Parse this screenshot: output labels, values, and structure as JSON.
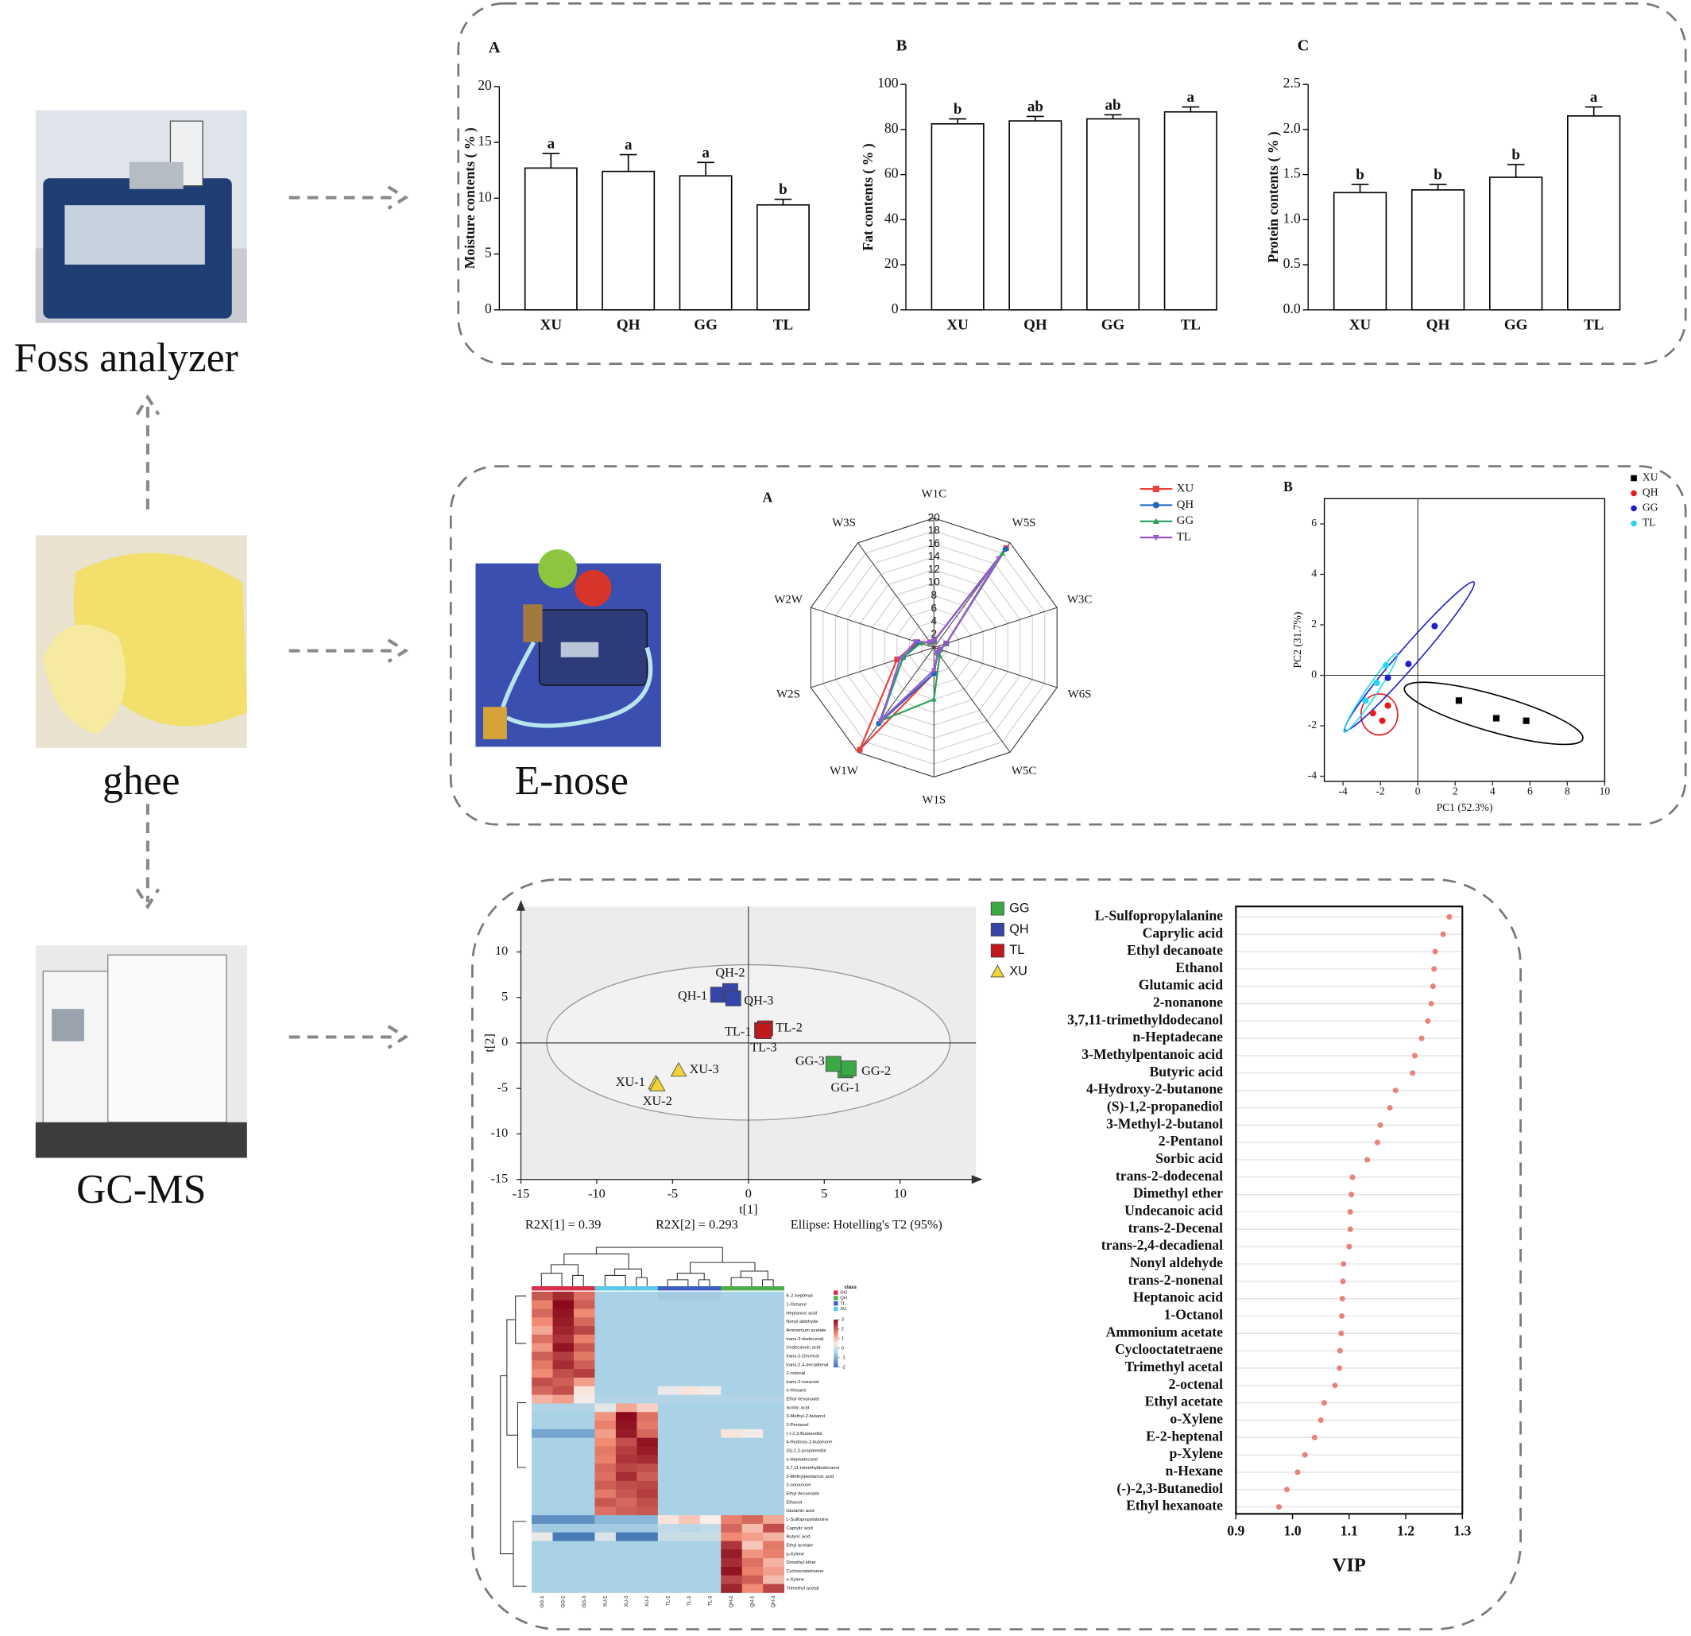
{
  "nodes": [
    {
      "label": "Foss analyzer"
    },
    {
      "label": "ghee"
    },
    {
      "label": "E-nose"
    },
    {
      "label": "GC-MS"
    }
  ],
  "chart_data": [
    {
      "type": "bar",
      "panel": "A",
      "ylabel": "Moisture contents ( % )",
      "categories": [
        "XU",
        "QH",
        "GG",
        "TL"
      ],
      "values": [
        12.7,
        12.4,
        12.0,
        9.4
      ],
      "errors": [
        1.3,
        1.5,
        1.2,
        0.5
      ],
      "annotations": [
        "a",
        "a",
        "a",
        "b"
      ],
      "color": "#ffffff",
      "ylim": [
        0,
        20
      ],
      "yticks": [
        0,
        5,
        10,
        15,
        20
      ]
    },
    {
      "type": "bar",
      "panel": "B",
      "ylabel": "Fat contents ( % )",
      "categories": [
        "XU",
        "QH",
        "GG",
        "TL"
      ],
      "values": [
        82.5,
        83.8,
        84.7,
        87.8
      ],
      "errors": [
        2.2,
        2.0,
        1.8,
        2.2
      ],
      "annotations": [
        "b",
        "ab",
        "ab",
        "a"
      ],
      "color": "#ffffff",
      "ylim": [
        0,
        100
      ],
      "yticks": [
        0,
        20,
        40,
        60,
        80,
        100
      ]
    },
    {
      "type": "bar",
      "panel": "C",
      "ylabel": "Protein contents ( % )",
      "categories": [
        "XU",
        "QH",
        "GG",
        "TL"
      ],
      "values": [
        1.3,
        1.33,
        1.47,
        2.15
      ],
      "errors": [
        0.09,
        0.06,
        0.14,
        0.1
      ],
      "annotations": [
        "b",
        "b",
        "b",
        "a"
      ],
      "color": "#ffffff",
      "ylim": [
        0,
        2.5
      ],
      "yticks": [
        {
          "value": 0,
          "label": "0.0"
        },
        0.5,
        {
          "value": 1,
          "label": "1.0"
        },
        1.5,
        {
          "value": 2,
          "label": "2.0"
        },
        2.5
      ]
    },
    {
      "type": "radar",
      "panel": "A",
      "categories": [
        "W1C",
        "W5S",
        "W3C",
        "W6S",
        "W5C",
        "W1S",
        "W1W",
        "W2S",
        "W2W",
        "W3S"
      ],
      "rlim": [
        0,
        20
      ],
      "rticks": [
        2,
        4,
        6,
        8,
        10,
        12,
        14,
        16,
        18,
        20
      ],
      "series": [
        {
          "name": "XU",
          "color": "#e8413c",
          "marker": "square",
          "values": [
            1,
            19,
            2,
            1,
            1,
            4,
            19.5,
            6,
            2.7,
            1
          ]
        },
        {
          "name": "QH",
          "color": "#2066c0",
          "marker": "circle",
          "values": [
            1,
            18.8,
            2,
            1,
            1,
            4,
            14.5,
            5,
            2.5,
            1
          ]
        },
        {
          "name": "GG",
          "color": "#2ca05a",
          "marker": "triangle",
          "values": [
            1,
            18,
            2,
            1,
            1.5,
            8,
            14,
            5,
            2.2,
            1
          ]
        },
        {
          "name": "TL",
          "color": "#9b59d0",
          "marker": "triangle-down",
          "values": [
            1,
            17,
            2,
            1,
            1,
            3.5,
            14,
            5.5,
            3,
            1
          ]
        }
      ]
    },
    {
      "type": "scatter",
      "panel": "B",
      "xlabel": "PC1 (52.3%)",
      "ylabel": "PC2 (31.7%)",
      "xlim": [
        -5,
        10
      ],
      "xticks": [
        -4,
        -2,
        0,
        2,
        4,
        6,
        8,
        10
      ],
      "ylim": [
        -4.2,
        7
      ],
      "yticks": [
        -4,
        -2,
        0,
        2,
        4,
        6
      ],
      "series": [
        {
          "name": "XU",
          "color": "#000000",
          "marker": "square",
          "x": [
            2.2,
            4.2,
            5.8
          ],
          "y": [
            -1.0,
            -1.7,
            -1.8
          ]
        },
        {
          "name": "QH",
          "color": "#e41a1c",
          "marker": "circle",
          "x": [
            -2.4,
            -1.9,
            -1.6
          ],
          "y": [
            -1.5,
            -1.8,
            -1.2
          ]
        },
        {
          "name": "GG",
          "color": "#1f1fd0",
          "marker": "circle",
          "x": [
            -1.6,
            -0.5,
            0.9
          ],
          "y": [
            -0.1,
            0.45,
            1.95
          ]
        },
        {
          "name": "TL",
          "color": "#22d8f0",
          "marker": "circle",
          "x": [
            -2.8,
            -2.2,
            -1.7
          ],
          "y": [
            -1.0,
            -0.3,
            0.4
          ]
        }
      ]
    },
    {
      "type": "scatter",
      "xlabel": "t[1]",
      "ylabel": "t[2]",
      "xlim": [
        -15,
        15
      ],
      "xticks": [
        -15,
        -10,
        -5,
        0,
        5,
        10
      ],
      "ylim": [
        -15,
        15
      ],
      "yticks": [
        -15,
        -10,
        -5,
        0,
        5,
        10
      ],
      "notes": [
        "R2X[1] = 0.39",
        "R2X[2] = 0.293",
        "Ellipse: Hotelling's T2 (95%)"
      ],
      "series": [
        {
          "name": "GG",
          "color": "#3aa845",
          "marker": "square",
          "x": [
            6.4,
            6.6,
            5.6
          ],
          "y": [
            -3.0,
            -2.8,
            -2.3
          ],
          "labels": [
            "GG-1",
            "GG-2",
            "GG-3"
          ]
        },
        {
          "name": "QH",
          "color": "#3546a8",
          "marker": "square",
          "x": [
            -2.0,
            -1.2,
            -1.0
          ],
          "y": [
            5.3,
            5.7,
            4.9
          ],
          "labels": [
            "QH-1",
            "QH-2",
            "QH-3"
          ]
        },
        {
          "name": "TL",
          "color": "#c0181c",
          "marker": "square",
          "x": [
            0.9,
            1.1,
            1.0
          ],
          "y": [
            1.4,
            1.6,
            1.3
          ],
          "labels": [
            "TL-1",
            "TL-2",
            "TL-3"
          ]
        },
        {
          "name": "XU",
          "color": "#f0d43a",
          "marker": "triangle",
          "x": [
            -6.1,
            -6.0,
            -4.6
          ],
          "y": [
            -4.4,
            -4.6,
            -3.0
          ],
          "labels": [
            "XU-1",
            "XU-2",
            "XU-3"
          ]
        }
      ]
    },
    {
      "type": "heatmap",
      "legend_title": "class",
      "classes": [
        "GG",
        "QH",
        "TL",
        "XU"
      ],
      "class_colors": [
        "#d62f4a",
        "#4cae4c",
        "#3f5fc4",
        "#5bc8e8"
      ],
      "columns": [
        "GG-1",
        "GG-2",
        "GG-3",
        "XU-1",
        "XU-3",
        "XU-2",
        "TL-2",
        "TL-1",
        "TL-3",
        "QH-2",
        "QH-1",
        "QH-3"
      ],
      "column_classes": [
        0,
        0,
        0,
        3,
        3,
        3,
        2,
        2,
        2,
        1,
        1,
        1
      ],
      "zlim": [
        -2,
        3
      ],
      "zticks": [
        -2,
        -1,
        0,
        1,
        2,
        3
      ],
      "rows": [
        "E-2-heptenal",
        "1-Octanol",
        "Heptanoic acid",
        "Nonyl aldehyde",
        "Ammonium acetate",
        "trans-2-dodecenal",
        "Undecanoic acid",
        "trans-2-Decenal",
        "trans-2,4-decadienal",
        "2-octenal",
        "trans-2-nonenal",
        "n-Hexane",
        "Ethyl hexanoate",
        "Sorbic acid",
        "3-Methyl-2-butanol",
        "2-Pentanol",
        "(-)-2,3-Butanediol",
        "4-Hydroxy-2-butanone",
        "(S)-1,2-propanediol",
        "n-Heptadecane",
        "3,7,11-trimethyldodecanol",
        "3-Methylpentanoic acid",
        "2-nonanone",
        "Ethyl decanoate",
        "Ethanol",
        "Glutamic acid",
        "L-Sulfopropylalanine",
        "Caprylic acid",
        "Butyric acid",
        "Ethyl acetate",
        "p-Xylene",
        "Dimethyl ether",
        "Cyclooctatetraene",
        "o-Xylene",
        "Trimethyl acetal"
      ],
      "values": [
        [
          2.1,
          2.6,
          1.8,
          -0.5,
          -0.5,
          -0.5,
          -0.6,
          -0.6,
          -0.6,
          -0.5,
          -0.5,
          -0.5
        ],
        [
          1.6,
          3.0,
          2.0,
          -0.5,
          -0.5,
          -0.5,
          -0.5,
          -0.5,
          -0.5,
          -0.5,
          -0.5,
          -0.5
        ],
        [
          1.9,
          2.9,
          1.5,
          -0.5,
          -0.5,
          -0.5,
          -0.5,
          -0.5,
          -0.5,
          -0.5,
          -0.5,
          -0.5
        ],
        [
          1.5,
          2.8,
          1.9,
          -0.5,
          -0.5,
          -0.5,
          -0.5,
          -0.5,
          -0.5,
          -0.5,
          -0.5,
          -0.5
        ],
        [
          1.2,
          2.7,
          2.3,
          -0.5,
          -0.5,
          -0.5,
          -0.5,
          -0.5,
          -0.5,
          -0.5,
          -0.5,
          -0.5
        ],
        [
          1.8,
          2.5,
          1.6,
          -0.5,
          -0.5,
          -0.5,
          -0.5,
          -0.5,
          -0.5,
          -0.5,
          -0.5,
          -0.5
        ],
        [
          1.4,
          2.9,
          2.1,
          -0.5,
          -0.5,
          -0.5,
          -0.5,
          -0.5,
          -0.5,
          -0.5,
          -0.5,
          -0.5
        ],
        [
          2.0,
          2.4,
          1.7,
          -0.5,
          -0.5,
          -0.5,
          -0.5,
          -0.5,
          -0.5,
          -0.5,
          -0.5,
          -0.5
        ],
        [
          1.7,
          2.6,
          2.0,
          -0.5,
          -0.5,
          -0.5,
          -0.5,
          -0.5,
          -0.5,
          -0.5,
          -0.5,
          -0.5
        ],
        [
          1.5,
          2.2,
          2.4,
          -0.5,
          -0.5,
          -0.5,
          -0.5,
          -0.5,
          -0.5,
          -0.5,
          -0.5,
          -0.5
        ],
        [
          2.2,
          2.0,
          1.3,
          -0.5,
          -0.5,
          -0.5,
          -0.5,
          -0.5,
          -0.5,
          -0.5,
          -0.5,
          -0.5
        ],
        [
          1.9,
          2.2,
          0.6,
          -0.5,
          -0.5,
          -0.5,
          0.3,
          0.6,
          0.4,
          -0.5,
          -0.5,
          -0.5
        ],
        [
          1.1,
          1.3,
          0.4,
          -0.4,
          -0.4,
          -0.4,
          -0.4,
          -0.4,
          -0.4,
          -0.4,
          -0.4,
          -0.4
        ],
        [
          -0.4,
          -0.4,
          -0.4,
          0.2,
          1.2,
          0.8,
          -0.5,
          -0.5,
          -0.5,
          -0.5,
          -0.5,
          -0.5
        ],
        [
          -0.5,
          -0.5,
          -0.5,
          1.4,
          3.0,
          1.8,
          -0.5,
          -0.5,
          -0.5,
          -0.5,
          -0.5,
          -0.5
        ],
        [
          -0.5,
          -0.5,
          -0.5,
          1.6,
          2.9,
          1.7,
          -0.5,
          -0.5,
          -0.5,
          -0.5,
          -0.5,
          -0.5
        ],
        [
          -1.2,
          -1.2,
          -1.2,
          1.3,
          2.8,
          1.9,
          -0.5,
          -0.5,
          -0.5,
          0.6,
          0.4,
          -0.5
        ],
        [
          -0.5,
          -0.5,
          -0.5,
          1.5,
          2.2,
          2.9,
          -0.5,
          -0.5,
          -0.5,
          -0.5,
          -0.5,
          -0.5
        ],
        [
          -0.5,
          -0.5,
          -0.5,
          1.7,
          2.4,
          2.8,
          -0.5,
          -0.5,
          -0.5,
          -0.5,
          -0.5,
          -0.5
        ],
        [
          -0.5,
          -0.5,
          -0.5,
          1.6,
          2.5,
          2.6,
          -0.5,
          -0.5,
          -0.5,
          -0.5,
          -0.5,
          -0.5
        ],
        [
          -0.5,
          -0.5,
          -0.5,
          1.9,
          2.3,
          2.2,
          -0.5,
          -0.5,
          -0.5,
          -0.5,
          -0.5,
          -0.5
        ],
        [
          -0.5,
          -0.5,
          -0.5,
          1.8,
          2.6,
          2.0,
          -0.5,
          -0.5,
          -0.5,
          -0.5,
          -0.5,
          -0.5
        ],
        [
          -0.5,
          -0.5,
          -0.5,
          2.0,
          2.2,
          2.3,
          -0.5,
          -0.5,
          -0.5,
          -0.5,
          -0.5,
          -0.5
        ],
        [
          -0.5,
          -0.5,
          -0.5,
          1.7,
          2.1,
          2.4,
          -0.5,
          -0.5,
          -0.5,
          -0.5,
          -0.5,
          -0.5
        ],
        [
          -0.5,
          -0.5,
          -0.5,
          2.1,
          1.9,
          2.2,
          -0.5,
          -0.5,
          -0.5,
          -0.5,
          -0.5,
          -0.5
        ],
        [
          -0.5,
          -0.5,
          -0.5,
          1.8,
          2.0,
          2.1,
          -0.5,
          -0.5,
          -0.5,
          -0.5,
          -0.5,
          -0.5
        ],
        [
          -1.5,
          -1.5,
          -1.5,
          -0.9,
          -0.9,
          -0.9,
          0.6,
          0.9,
          0.5,
          1.6,
          1.9,
          1.2
        ],
        [
          -0.6,
          -0.6,
          -0.6,
          -0.6,
          -0.6,
          -0.6,
          -0.2,
          -0.3,
          -0.2,
          1.9,
          1.0,
          2.2
        ],
        [
          0.3,
          -1.8,
          -1.8,
          0.1,
          -1.8,
          -1.8,
          -0.1,
          -0.1,
          -0.1,
          1.5,
          1.3,
          1.1
        ],
        [
          -0.5,
          -0.5,
          -0.5,
          -0.5,
          -0.5,
          -0.5,
          -0.5,
          -0.5,
          -0.5,
          2.5,
          0.9,
          1.7
        ],
        [
          -0.5,
          -0.5,
          -0.5,
          -0.5,
          -0.5,
          -0.5,
          -0.5,
          -0.5,
          -0.5,
          2.8,
          1.4,
          1.6
        ],
        [
          -0.5,
          -0.5,
          -0.5,
          -0.5,
          -0.5,
          -0.5,
          -0.5,
          -0.5,
          -0.5,
          2.6,
          1.8,
          1.1
        ],
        [
          -0.5,
          -0.5,
          -0.5,
          -0.5,
          -0.5,
          -0.5,
          -0.5,
          -0.5,
          -0.5,
          2.9,
          1.6,
          1.3
        ],
        [
          -0.5,
          -0.5,
          -0.5,
          -0.5,
          -0.5,
          -0.5,
          -0.5,
          -0.5,
          -0.5,
          2.3,
          2.0,
          1.0
        ],
        [
          -0.5,
          -0.5,
          -0.5,
          -0.5,
          -0.5,
          -0.5,
          -0.5,
          -0.5,
          -0.5,
          2.7,
          1.5,
          2.3
        ]
      ]
    },
    {
      "type": "dot",
      "xlabel": "VIP",
      "color": "#e8837a",
      "grid": true,
      "xlim": [
        0.9,
        1.3
      ],
      "xticks": [
        0.9,
        {
          "value": 1,
          "label": "1.0"
        },
        1.1,
        1.2,
        1.3
      ],
      "categories": [
        "L-Sulfopropylalanine",
        "Caprylic acid",
        "Ethyl decanoate",
        "Ethanol",
        "Glutamic acid",
        "2-nonanone",
        "3,7,11-trimethyldodecanol",
        "n-Heptadecane",
        "3-Methylpentanoic acid",
        "Butyric acid",
        "4-Hydroxy-2-butanone",
        "(S)-1,2-propanediol",
        "3-Methyl-2-butanol",
        "2-Pentanol",
        "Sorbic acid",
        "trans-2-dodecenal",
        "Dimethyl ether",
        "Undecanoic acid",
        "trans-2-Decenal",
        "trans-2,4-decadienal",
        "Nonyl aldehyde",
        "trans-2-nonenal",
        "Heptanoic acid",
        "1-Octanol",
        "Ammonium acetate",
        "Cyclooctatetraene",
        "Trimethyl acetal",
        "2-octenal",
        "Ethyl acetate",
        "o-Xylene",
        "E-2-heptenal",
        "p-Xylene",
        "n-Hexane",
        "(-)-2,3-Butanediol",
        "Ethyl hexanoate"
      ],
      "values": [
        1.277,
        1.266,
        1.252,
        1.25,
        1.248,
        1.245,
        1.239,
        1.228,
        1.216,
        1.212,
        1.182,
        1.172,
        1.155,
        1.15,
        1.132,
        1.106,
        1.104,
        1.102,
        1.102,
        1.1,
        1.09,
        1.089,
        1.088,
        1.087,
        1.086,
        1.084,
        1.083,
        1.075,
        1.056,
        1.05,
        1.039,
        1.022,
        1.009,
        0.99,
        0.976
      ]
    }
  ]
}
